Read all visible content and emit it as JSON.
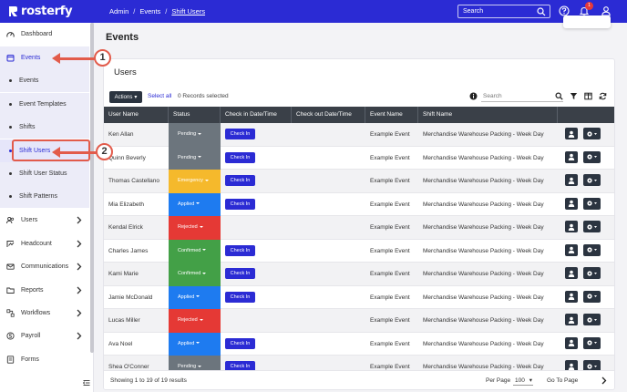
{
  "app": {
    "brand": "rosterfy"
  },
  "breadcrumb": {
    "items": [
      "Admin",
      "Events",
      "Shift Users"
    ]
  },
  "topbar": {
    "search_placeholder": "Search",
    "notification_count": "1"
  },
  "sidebar": {
    "items": [
      {
        "label": "Dashboard",
        "icon": "dashboard-icon"
      },
      {
        "label": "Events",
        "icon": "calendar-icon"
      },
      {
        "label": "Events"
      },
      {
        "label": "Event Templates"
      },
      {
        "label": "Shifts"
      },
      {
        "label": "Shift Users"
      },
      {
        "label": "Shift User Status"
      },
      {
        "label": "Shift Patterns"
      },
      {
        "label": "Users",
        "icon": "users-icon"
      },
      {
        "label": "Headcount",
        "icon": "headcount-icon"
      },
      {
        "label": "Communications",
        "icon": "mail-icon"
      },
      {
        "label": "Reports",
        "icon": "folder-icon"
      },
      {
        "label": "Workflows",
        "icon": "workflow-icon"
      },
      {
        "label": "Payroll",
        "icon": "payroll-icon"
      },
      {
        "label": "Forms",
        "icon": "forms-icon"
      }
    ]
  },
  "page": {
    "title": "Events"
  },
  "card": {
    "title": "Users",
    "actions_label": "Actions",
    "select_all": "Select all",
    "records_selected": "0 Records selected",
    "search_placeholder": "Search"
  },
  "table": {
    "columns": [
      "User Name",
      "Status",
      "Check in Date/Time",
      "Check out Date/Time",
      "Event Name",
      "Shift Name"
    ],
    "checkin_label": "Check In",
    "rows": [
      {
        "name": "Ken Allan",
        "status": "Pending",
        "checkin": true,
        "event": "Example Event",
        "shift": "Merchandise Warehouse Packing - Week Day"
      },
      {
        "name": "Quinn Beverly",
        "status": "Pending",
        "checkin": true,
        "event": "Example Event",
        "shift": "Merchandise Warehouse Packing - Week Day"
      },
      {
        "name": "Thomas Castellano",
        "status": "Emergency",
        "checkin": true,
        "event": "Example Event",
        "shift": "Merchandise Warehouse Packing - Week Day"
      },
      {
        "name": "Mia Elizabeth",
        "status": "Applied",
        "checkin": true,
        "event": "Example Event",
        "shift": "Merchandise Warehouse Packing - Week Day"
      },
      {
        "name": "Kendal Elrick",
        "status": "Rejected",
        "checkin": false,
        "event": "Example Event",
        "shift": "Merchandise Warehouse Packing - Week Day"
      },
      {
        "name": "Charles James",
        "status": "Confirmed",
        "checkin": true,
        "event": "Example Event",
        "shift": "Merchandise Warehouse Packing - Week Day"
      },
      {
        "name": "Kami Marie",
        "status": "Confirmed",
        "checkin": true,
        "event": "Example Event",
        "shift": "Merchandise Warehouse Packing - Week Day"
      },
      {
        "name": "Jamie McDonald",
        "status": "Applied",
        "checkin": true,
        "event": "Example Event",
        "shift": "Merchandise Warehouse Packing - Week Day"
      },
      {
        "name": "Lucas Miller",
        "status": "Rejected",
        "checkin": false,
        "event": "Example Event",
        "shift": "Merchandise Warehouse Packing - Week Day"
      },
      {
        "name": "Ava Noel",
        "status": "Applied",
        "checkin": true,
        "event": "Example Event",
        "shift": "Merchandise Warehouse Packing - Week Day"
      },
      {
        "name": "Shea O'Conner",
        "status": "Pending",
        "checkin": true,
        "event": "Example Event",
        "shift": "Merchandise Warehouse Packing - Week Day"
      }
    ]
  },
  "status_colors": {
    "Pending": "#6c757d",
    "Emergency": "#f5b92c",
    "Applied": "#1e7bf0",
    "Rejected": "#e53935",
    "Confirmed": "#43a047"
  },
  "footer": {
    "showing": "Showing 1 to 19 of 19 results",
    "per_page": "Per Page",
    "page_size": "100",
    "go_to_page": "Go To Page"
  },
  "annotations": {
    "callout_1": "1",
    "callout_2": "2"
  }
}
